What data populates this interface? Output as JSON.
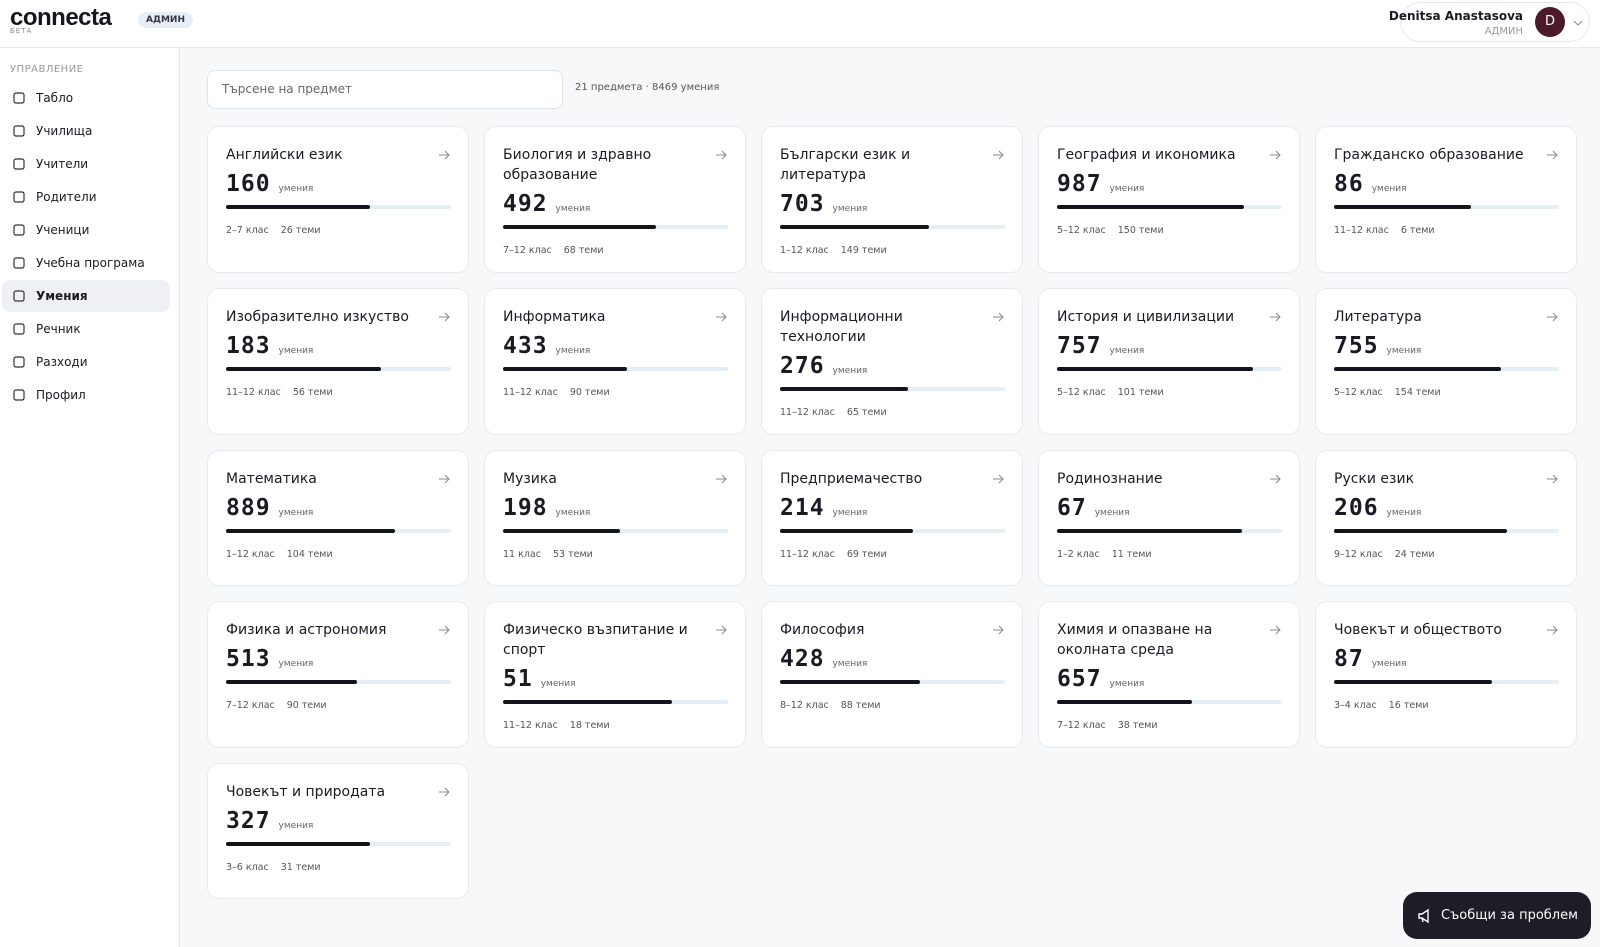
{
  "header": {
    "logo": "connecta",
    "logo_sub": "БЕТА",
    "role_badge": "АДМИН",
    "user_name": "Denitsa Anastasova",
    "user_role": "АДМИН",
    "avatar": "D"
  },
  "sidebar": {
    "section": "УПРАВЛЕНИЕ",
    "items": [
      "Табло",
      "Училища",
      "Учители",
      "Родители",
      "Ученици",
      "Учебна програма",
      "Умения",
      "Речник",
      "Разходи",
      "Профил"
    ],
    "active": 6
  },
  "toolbar": {
    "search_placeholder": "Търсене на предмет",
    "summary": "21 предмета · 8469 умения"
  },
  "cards": [
    {
      "title": "Английски език",
      "count": 160,
      "unit": "умения",
      "grades": "2–7 клас",
      "topics": "26 теми",
      "fill": 64
    },
    {
      "title": "Биология и здравно образование",
      "count": 492,
      "unit": "умения",
      "grades": "7–12 клас",
      "topics": "68 теми",
      "fill": 68
    },
    {
      "title": "Български език и литература",
      "count": 703,
      "unit": "умения",
      "grades": "1–12 клас",
      "topics": "149 теми",
      "fill": 66
    },
    {
      "title": "География и икономика",
      "count": 987,
      "unit": "умения",
      "grades": "5–12 клас",
      "topics": "150 теми",
      "fill": 83
    },
    {
      "title": "Гражданско образование",
      "count": 86,
      "unit": "умения",
      "grades": "11–12 клас",
      "topics": "6 теми",
      "fill": 61
    },
    {
      "title": "Изобразително изкуство",
      "count": 183,
      "unit": "умения",
      "grades": "11–12 клас",
      "topics": "56 теми",
      "fill": 69
    },
    {
      "title": "Информатика",
      "count": 433,
      "unit": "умения",
      "grades": "11–12 клас",
      "topics": "90 теми",
      "fill": 55
    },
    {
      "title": "Информационни технологии",
      "count": 276,
      "unit": "умения",
      "grades": "11–12 клас",
      "topics": "65 теми",
      "fill": 57
    },
    {
      "title": "История и цивилизации",
      "count": 757,
      "unit": "умения",
      "grades": "5–12 клас",
      "topics": "101 теми",
      "fill": 87
    },
    {
      "title": "Литература",
      "count": 755,
      "unit": "умения",
      "grades": "5–12 клас",
      "topics": "154 теми",
      "fill": 74
    },
    {
      "title": "Математика",
      "count": 889,
      "unit": "умения",
      "grades": "1–12 клас",
      "topics": "104 теми",
      "fill": 75
    },
    {
      "title": "Музика",
      "count": 198,
      "unit": "умения",
      "grades": "11 клас",
      "topics": "53 теми",
      "fill": 52
    },
    {
      "title": "Предприемачество",
      "count": 214,
      "unit": "умения",
      "grades": "11–12 клас",
      "topics": "69 теми",
      "fill": 59
    },
    {
      "title": "Родинознание",
      "count": 67,
      "unit": "умения",
      "grades": "1–2 клас",
      "topics": "11 теми",
      "fill": 82
    },
    {
      "title": "Руски език",
      "count": 206,
      "unit": "умения",
      "grades": "9–12 клас",
      "topics": "24 теми",
      "fill": 77
    },
    {
      "title": "Физика и астрономия",
      "count": 513,
      "unit": "умения",
      "grades": "7–12 клас",
      "topics": "90 теми",
      "fill": 58
    },
    {
      "title": "Физическо възпитание и спорт",
      "count": 51,
      "unit": "умения",
      "grades": "11–12 клас",
      "topics": "18 теми",
      "fill": 75
    },
    {
      "title": "Философия",
      "count": 428,
      "unit": "умения",
      "grades": "8–12 клас",
      "topics": "88 теми",
      "fill": 62
    },
    {
      "title": "Химия и опазване на околната среда",
      "count": 657,
      "unit": "умения",
      "grades": "7–12 клас",
      "topics": "38 теми",
      "fill": 60
    },
    {
      "title": "Човекът и обществото",
      "count": 87,
      "unit": "умения",
      "grades": "3–4 клас",
      "topics": "16 теми",
      "fill": 70
    },
    {
      "title": "Човекът и природата",
      "count": 327,
      "unit": "умения",
      "grades": "3–6 клас",
      "topics": "31 теми",
      "fill": 64
    }
  ],
  "report_button": "Съобщи за проблем"
}
